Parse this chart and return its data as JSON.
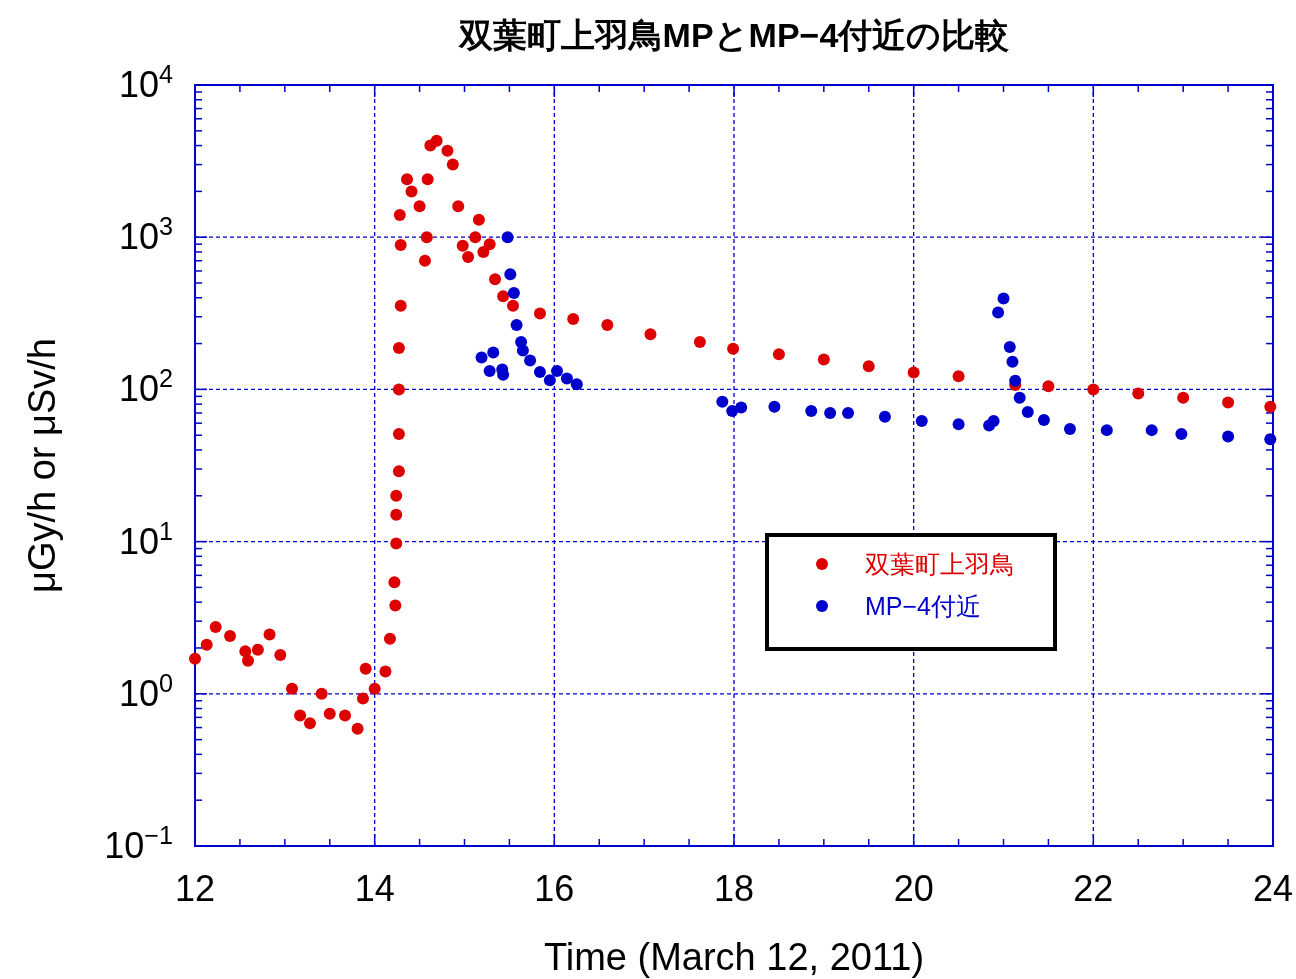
{
  "chart_data": {
    "type": "scatter",
    "title": "双葉町上羽鳥MPとMP−4付近の比較",
    "xlabel": "Time (March 12, 2011)",
    "ylabel": "μGy/h or μSv/h",
    "log": "y",
    "xlim": [
      12,
      24
    ],
    "xticks": [
      12,
      14,
      16,
      18,
      20,
      22,
      24
    ],
    "ylim": [
      0.1,
      10000
    ],
    "yticks": [
      {
        "value": 0.1,
        "label": "10$^{−1}$"
      },
      {
        "value": 1,
        "label": "10$^{0}$"
      },
      {
        "value": 10,
        "label": "10$^{1}$"
      },
      {
        "value": 100,
        "label": "10$^{2}$"
      },
      {
        "value": 1000,
        "label": "10$^{3}$"
      },
      {
        "value": 10000,
        "label": "10$^{4}$"
      }
    ],
    "grid": true,
    "legend": "right",
    "marker": "circle",
    "series": [
      {
        "name": "双葉町上羽鳥",
        "color": "#dd0000",
        "x": [
          12.0,
          12.13,
          12.23,
          12.39,
          12.56,
          12.59,
          12.7,
          12.83,
          12.95,
          13.08,
          13.17,
          13.28,
          13.41,
          13.5,
          13.67,
          13.81,
          13.87,
          13.9,
          14.0,
          14.12,
          14.17,
          14.23,
          14.22,
          14.24,
          14.24,
          14.24,
          14.27,
          14.27,
          14.27,
          14.27,
          14.29,
          14.29,
          14.28,
          14.36,
          14.41,
          14.5,
          14.56,
          14.58,
          14.59,
          14.62,
          14.69,
          14.81,
          14.87,
          14.93,
          14.98,
          15.04,
          15.12,
          15.16,
          15.21,
          15.28,
          15.34,
          15.43,
          15.54,
          15.84,
          16.21,
          16.59,
          17.07,
          17.62,
          17.99,
          18.5,
          19.0,
          19.5,
          20.0,
          20.5,
          21.13,
          21.5,
          22.0,
          22.5,
          23.0,
          23.5,
          23.97
        ],
        "values": [
          1.7,
          2.1,
          2.75,
          2.4,
          1.9,
          1.65,
          1.95,
          2.45,
          1.8,
          1.08,
          0.72,
          0.64,
          1.0,
          0.74,
          0.72,
          0.59,
          0.93,
          1.46,
          1.08,
          1.4,
          2.3,
          3.8,
          5.4,
          9.7,
          15,
          20,
          29,
          51,
          100,
          187,
          355,
          890,
          1400,
          2400,
          2000,
          1600,
          700,
          1000,
          2400,
          4000,
          4300,
          3700,
          3000,
          1600,
          880,
          740,
          1000,
          1300,
          800,
          900,
          530,
          410,
          355,
          315,
          290,
          265,
          230,
          205,
          185,
          170,
          157,
          142,
          129,
          122,
          107,
          105,
          100,
          94,
          88,
          82,
          77
        ]
      },
      {
        "name": "MP−4付近",
        "color": "#0000cc",
        "x": [
          15.19,
          15.28,
          15.32,
          15.42,
          15.43,
          15.48,
          15.51,
          15.55,
          15.58,
          15.63,
          15.65,
          15.73,
          15.84,
          15.95,
          16.03,
          16.14,
          16.25,
          17.87,
          17.98,
          18.08,
          18.45,
          18.86,
          19.07,
          19.27,
          19.68,
          20.09,
          20.5,
          20.84,
          20.89,
          20.94,
          21.0,
          21.07,
          21.1,
          21.13,
          21.18,
          21.27,
          21.45,
          21.74,
          22.15,
          22.65,
          22.98,
          23.5,
          23.97
        ],
        "values": [
          162,
          132,
          175,
          135,
          125,
          1000,
          570,
          430,
          265,
          205,
          180,
          155,
          130,
          115,
          132,
          118,
          108,
          83,
          72,
          76,
          77,
          72,
          70,
          70,
          66,
          62,
          59,
          58,
          62,
          320,
          395,
          190,
          152,
          114,
          88,
          71,
          63,
          55,
          54,
          54,
          51,
          49,
          47
        ]
      }
    ]
  }
}
